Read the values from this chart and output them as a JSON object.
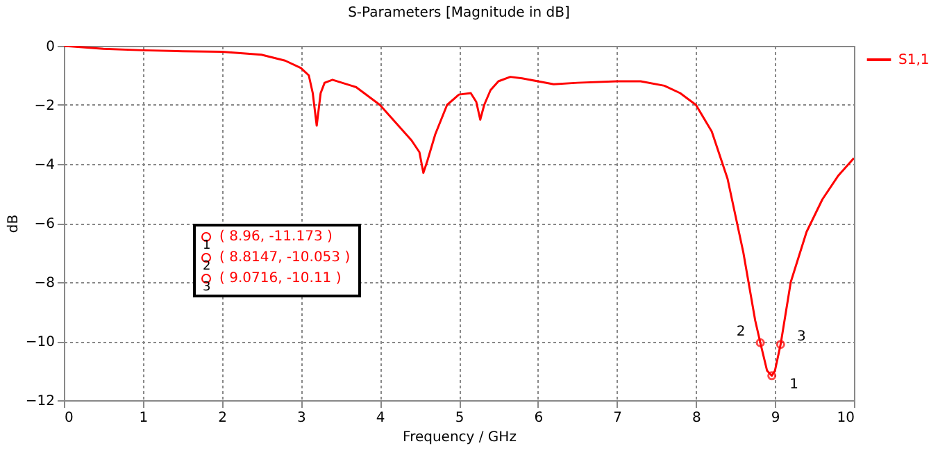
{
  "chart_data": {
    "type": "line",
    "title": "S-Parameters [Magnitude in dB]",
    "xlabel": "Frequency / GHz",
    "ylabel": "dB",
    "xlim": [
      0,
      10
    ],
    "ylim": [
      -12,
      0
    ],
    "xticks": [
      0,
      1,
      2,
      3,
      4,
      5,
      6,
      7,
      8,
      9,
      10
    ],
    "yticks": [
      0,
      -2,
      -4,
      -6,
      -8,
      -10,
      -12
    ],
    "grid": true,
    "legend": "top right",
    "x": [
      0,
      0.5,
      1,
      1.5,
      2,
      2.5,
      2.8,
      3.0,
      3.1,
      3.15,
      3.2,
      3.25,
      3.3,
      3.4,
      3.7,
      4.0,
      4.2,
      4.4,
      4.5,
      4.55,
      4.6,
      4.7,
      4.85,
      5.0,
      5.15,
      5.22,
      5.27,
      5.32,
      5.4,
      5.5,
      5.65,
      5.8,
      6.0,
      6.2,
      6.5,
      7.0,
      7.3,
      7.6,
      7.8,
      8.0,
      8.2,
      8.4,
      8.6,
      8.75,
      8.8147,
      8.9,
      8.96,
      9.0,
      9.0716,
      9.2,
      9.4,
      9.6,
      9.8,
      10
    ],
    "series": [
      {
        "name": "S1,1",
        "color": "#ff0000",
        "values": [
          0,
          -0.1,
          -0.15,
          -0.18,
          -0.2,
          -0.3,
          -0.5,
          -0.75,
          -1.0,
          -1.6,
          -2.7,
          -1.6,
          -1.25,
          -1.15,
          -1.4,
          -2.0,
          -2.6,
          -3.2,
          -3.6,
          -4.3,
          -3.9,
          -3.0,
          -2.0,
          -1.65,
          -1.6,
          -1.9,
          -2.5,
          -2.0,
          -1.5,
          -1.2,
          -1.05,
          -1.1,
          -1.2,
          -1.3,
          -1.25,
          -1.2,
          -1.2,
          -1.35,
          -1.6,
          -2.0,
          -2.9,
          -4.5,
          -7.0,
          -9.3,
          -10.053,
          -11.0,
          -11.173,
          -11.0,
          -10.11,
          -8.0,
          -6.3,
          -5.2,
          -4.4,
          -3.8
        ]
      }
    ],
    "annotations": [
      {
        "text": "1",
        "x": 8.96,
        "y": -11.173
      },
      {
        "text": "2",
        "x": 8.8147,
        "y": -10.053
      },
      {
        "text": "3",
        "x": 9.0716,
        "y": -10.11
      },
      "( 8.96, -11.173 )",
      "( 8.8147, -10.053 )",
      "( 9.0716, -10.11 )"
    ]
  }
}
